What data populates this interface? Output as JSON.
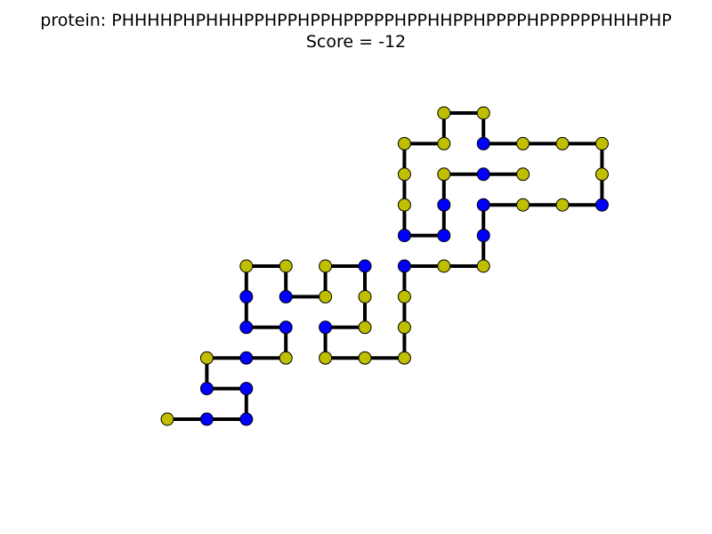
{
  "header": {
    "protein_line": "protein: PHHHHPHPHHHPPHPPHPPHPPPPPHPPHHPPHPPPPHPPPPPPHHHPHP",
    "score_line": "Score = -12"
  },
  "legend_colors": {
    "P": "#bfbf00",
    "H": "#0000ff"
  },
  "sequence": "PHHHHPHPHHHPPHPPHPPHPPPPPHPPHHPPHPPPPHPPPPPPHHHPHP",
  "score": -12,
  "chart_data": {
    "type": "scatter",
    "title": "protein: PHHHHPHPHHHPPHPPHPPHPPPPPHPPHHPPHPPPPHPPPPPPHHHPHP\nScore = -12",
    "grid": false,
    "connected": true,
    "series": [
      {
        "values": [
          {
            "x": 0,
            "y": 0,
            "type": "P"
          },
          {
            "x": 1,
            "y": 0,
            "type": "H"
          },
          {
            "x": 2,
            "y": 0,
            "type": "H"
          },
          {
            "x": 2,
            "y": 1,
            "type": "H"
          },
          {
            "x": 1,
            "y": 1,
            "type": "H"
          },
          {
            "x": 1,
            "y": 2,
            "type": "P"
          },
          {
            "x": 2,
            "y": 2,
            "type": "H"
          },
          {
            "x": 3,
            "y": 2,
            "type": "P"
          },
          {
            "x": 3,
            "y": 3,
            "type": "H"
          },
          {
            "x": 2,
            "y": 3,
            "type": "H"
          },
          {
            "x": 2,
            "y": 4,
            "type": "H"
          },
          {
            "x": 2,
            "y": 5,
            "type": "P"
          },
          {
            "x": 3,
            "y": 5,
            "type": "P"
          },
          {
            "x": 3,
            "y": 4,
            "type": "H"
          },
          {
            "x": 4,
            "y": 4,
            "type": "P"
          },
          {
            "x": 4,
            "y": 5,
            "type": "P"
          },
          {
            "x": 5,
            "y": 5,
            "type": "H"
          },
          {
            "x": 5,
            "y": 4,
            "type": "P"
          },
          {
            "x": 5,
            "y": 3,
            "type": "P"
          },
          {
            "x": 4,
            "y": 3,
            "type": "H"
          },
          {
            "x": 4,
            "y": 2,
            "type": "P"
          },
          {
            "x": 5,
            "y": 2,
            "type": "P"
          },
          {
            "x": 6,
            "y": 2,
            "type": "P"
          },
          {
            "x": 6,
            "y": 3,
            "type": "P"
          },
          {
            "x": 6,
            "y": 4,
            "type": "P"
          },
          {
            "x": 6,
            "y": 5,
            "type": "H"
          },
          {
            "x": 7,
            "y": 5,
            "type": "P"
          },
          {
            "x": 8,
            "y": 5,
            "type": "P"
          },
          {
            "x": 8,
            "y": 6,
            "type": "H"
          },
          {
            "x": 8,
            "y": 7,
            "type": "H"
          },
          {
            "x": 9,
            "y": 7,
            "type": "P"
          },
          {
            "x": 10,
            "y": 7,
            "type": "P"
          },
          {
            "x": 11,
            "y": 7,
            "type": "H"
          },
          {
            "x": 11,
            "y": 8,
            "type": "P"
          },
          {
            "x": 11,
            "y": 9,
            "type": "P"
          },
          {
            "x": 10,
            "y": 9,
            "type": "P"
          },
          {
            "x": 9,
            "y": 9,
            "type": "P"
          },
          {
            "x": 8,
            "y": 9,
            "type": "H"
          },
          {
            "x": 8,
            "y": 10,
            "type": "P"
          },
          {
            "x": 7,
            "y": 10,
            "type": "P"
          },
          {
            "x": 7,
            "y": 9,
            "type": "P"
          },
          {
            "x": 6,
            "y": 9,
            "type": "P"
          },
          {
            "x": 6,
            "y": 8,
            "type": "P"
          },
          {
            "x": 6,
            "y": 7,
            "type": "P"
          },
          {
            "x": 6,
            "y": 6,
            "type": "H"
          },
          {
            "x": 7,
            "y": 6,
            "type": "H"
          },
          {
            "x": 7,
            "y": 7,
            "type": "H"
          },
          {
            "x": 7,
            "y": 8,
            "type": "P"
          },
          {
            "x": 8,
            "y": 8,
            "type": "H"
          },
          {
            "x": 9,
            "y": 8,
            "type": "P"
          }
        ]
      }
    ]
  }
}
